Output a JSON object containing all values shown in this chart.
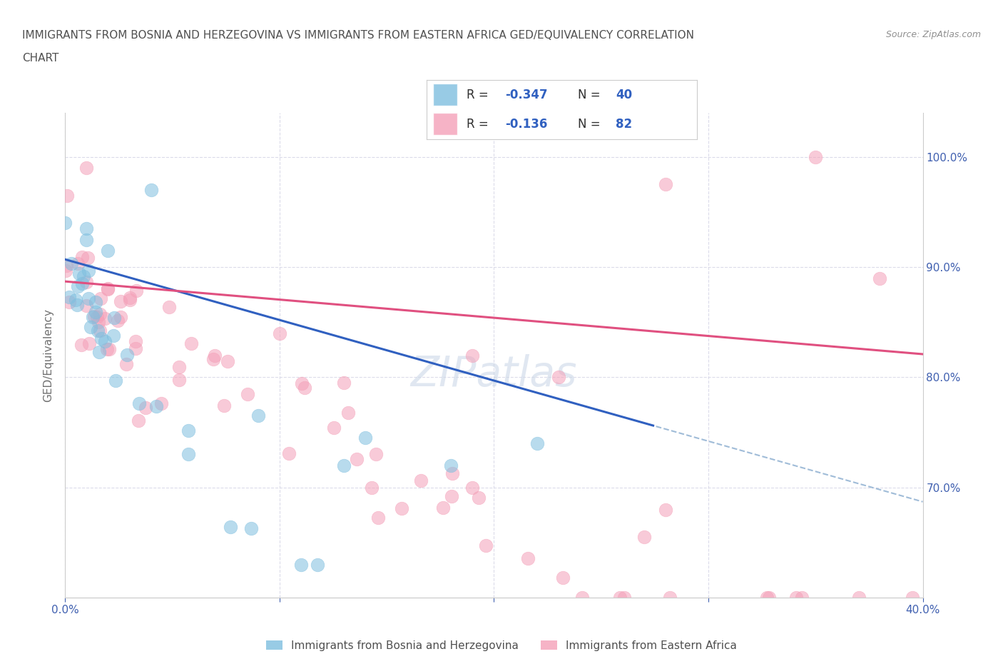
{
  "title_line1": "IMMIGRANTS FROM BOSNIA AND HERZEGOVINA VS IMMIGRANTS FROM EASTERN AFRICA GED/EQUIVALENCY CORRELATION",
  "title_line2": "CHART",
  "source_text": "Source: ZipAtlas.com",
  "ylabel": "GED/Equivalency",
  "xlim": [
    0.0,
    0.4
  ],
  "ylim": [
    0.6,
    1.04
  ],
  "x_tick_positions": [
    0.0,
    0.1,
    0.2,
    0.3,
    0.4
  ],
  "x_tick_labels": [
    "0.0%",
    "",
    "",
    "",
    "40.0%"
  ],
  "y_tick_positions": [
    0.7,
    0.8,
    0.9,
    1.0
  ],
  "y_tick_labels": [
    "70.0%",
    "80.0%",
    "90.0%",
    "100.0%"
  ],
  "color_bosnia": "#7fbfdf",
  "color_eastern_africa": "#f4a0b8",
  "color_bosnia_line": "#3060c0",
  "color_eastern_africa_line": "#e05080",
  "color_bosnia_dash": "#a0bcd8",
  "R_bosnia": -0.347,
  "N_bosnia": 40,
  "R_eastern_africa": -0.136,
  "N_eastern_africa": 82,
  "legend_label_bosnia": "Immigrants from Bosnia and Herzegovina",
  "legend_label_eastern_africa": "Immigrants from Eastern Africa",
  "watermark": "ZIPatlas",
  "background_color": "#ffffff",
  "grid_color": "#d8d8e8",
  "annotation_color": "#3060c0",
  "title_color": "#505050",
  "tick_label_color": "#4060b0",
  "legend_text_color": "#3060c0",
  "seed_bosnia": 77,
  "seed_ea": 99
}
